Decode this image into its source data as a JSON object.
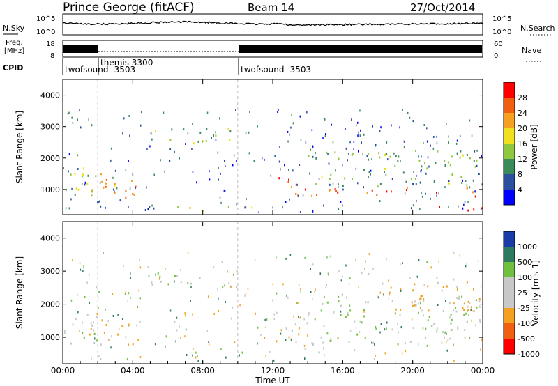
{
  "header": {
    "station": "Prince George (fitACF)",
    "beam": "Beam 14",
    "date": "27/Oct/2014"
  },
  "noise_panel": {
    "left_label": "N.Sky",
    "right_label": "N.Search",
    "left_ticks": [
      "10^5",
      "10^0"
    ],
    "right_ticks": [
      "10^5",
      "10^0"
    ]
  },
  "freq_panel": {
    "left_label_1": "Freq.",
    "left_label_2": "[MHz]",
    "left_ticks": [
      "18",
      "8"
    ],
    "right_label": "Nave",
    "right_ticks": [
      "60",
      "0"
    ]
  },
  "cpid_panel": {
    "label": "CPID",
    "segments": [
      {
        "name": "twofsound -3503",
        "start_hour": 0
      },
      {
        "name": "themis 3300",
        "start_hour": 2
      },
      {
        "name": "twofsound -3503",
        "start_hour": 10
      }
    ]
  },
  "time_axis": {
    "label": "Time UT",
    "ticks": [
      "00:00",
      "04:00",
      "08:00",
      "12:00",
      "16:00",
      "20:00",
      "00:00"
    ]
  },
  "colors": {
    "power_scale": [
      "#0000ff",
      "#2a4f9e",
      "#3a8a5a",
      "#8fc83e",
      "#f0e020",
      "#f5a020",
      "#f06010",
      "#ff0000"
    ],
    "velocity_scale": [
      "#1a3ca8",
      "#2d7a5e",
      "#70c040",
      "#c8c8c8",
      "#c8c8c8",
      "#f5a020",
      "#f06010",
      "#ff0000"
    ]
  },
  "chart_data": [
    {
      "type": "heatmap",
      "name": "power",
      "ylabel": "Slant Range [km]",
      "xlabel": "",
      "xlim": [
        0,
        24
      ],
      "ylim": [
        200,
        4500
      ],
      "yticks": [
        "1000",
        "2000",
        "3000",
        "4000"
      ],
      "colorbar": {
        "label": "Power [dB]",
        "ticks": [
          "28",
          "24",
          "20",
          "16",
          "12",
          "8",
          "4"
        ],
        "range": [
          0,
          32
        ]
      },
      "features": [
        {
          "t0": 0.0,
          "t1": 2.0,
          "r0": 700,
          "r1": 1800,
          "level": 14
        },
        {
          "t0": 1.5,
          "t1": 4.3,
          "r0": 800,
          "r1": 1600,
          "level": 22
        },
        {
          "t0": 3.5,
          "t1": 4.3,
          "r0": 600,
          "r1": 1000,
          "level": 28
        },
        {
          "t0": 5.0,
          "t1": 10.0,
          "r0": 2500,
          "r1": 3000,
          "level": 14
        },
        {
          "t0": 6.0,
          "t1": 11.0,
          "r0": 300,
          "r1": 500,
          "level": 18
        },
        {
          "t0": 11.8,
          "t1": 13.5,
          "r0": 900,
          "r1": 1400,
          "level": 27
        },
        {
          "t0": 13.0,
          "t1": 24.0,
          "r0": 800,
          "r1": 1100,
          "level": 26
        },
        {
          "t0": 14.0,
          "t1": 24.0,
          "r0": 1100,
          "r1": 2300,
          "level": 12
        },
        {
          "t0": 21.0,
          "t1": 24.0,
          "r0": 300,
          "r1": 500,
          "level": 28
        }
      ]
    },
    {
      "type": "heatmap",
      "name": "velocity",
      "ylabel": "Slant Range [km]",
      "xlabel": "Time UT",
      "xlim": [
        0,
        24
      ],
      "ylim": [
        200,
        4500
      ],
      "yticks": [
        "1000",
        "2000",
        "3000",
        "4000"
      ],
      "colorbar": {
        "label": "Velocity [m s-1]",
        "ticks": [
          "1000",
          "500",
          "100",
          "25",
          "-25",
          "-100",
          "-500",
          "-1000"
        ],
        "range": [
          -1000,
          1000
        ]
      },
      "features": [
        {
          "t0": 0.0,
          "t1": 2.0,
          "r0": 700,
          "r1": 1800,
          "level": 0
        },
        {
          "t0": 1.5,
          "t1": 4.3,
          "r0": 800,
          "r1": 1600,
          "level": -150
        },
        {
          "t0": 5.0,
          "t1": 10.0,
          "r0": 2500,
          "r1": 3000,
          "level": 0
        },
        {
          "t0": 7.0,
          "t1": 10.5,
          "r0": 300,
          "r1": 500,
          "level": 150
        },
        {
          "t0": 11.8,
          "t1": 13.5,
          "r0": 900,
          "r1": 1400,
          "level": -200
        },
        {
          "t0": 13.0,
          "t1": 24.0,
          "r0": 800,
          "r1": 1100,
          "level": 0
        },
        {
          "t0": 14.0,
          "t1": 24.0,
          "r0": 1100,
          "r1": 2300,
          "level": 0
        },
        {
          "t0": 18.0,
          "t1": 24.0,
          "r0": 1800,
          "r1": 2800,
          "level": -150
        }
      ]
    }
  ]
}
